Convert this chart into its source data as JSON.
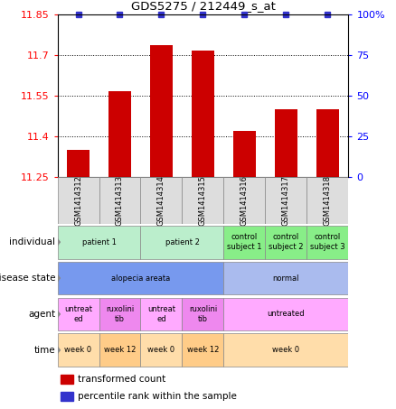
{
  "title": "GDS5275 / 212449_s_at",
  "samples": [
    "GSM1414312",
    "GSM1414313",
    "GSM1414314",
    "GSM1414315",
    "GSM1414316",
    "GSM1414317",
    "GSM1414318"
  ],
  "bar_values": [
    11.35,
    11.565,
    11.735,
    11.715,
    11.42,
    11.5,
    11.5
  ],
  "percentile_values": [
    100,
    100,
    100,
    100,
    100,
    100,
    100
  ],
  "ylim": [
    11.25,
    11.85
  ],
  "yticks_left": [
    11.25,
    11.4,
    11.55,
    11.7,
    11.85
  ],
  "yticks_right": [
    0,
    25,
    50,
    75,
    100
  ],
  "bar_color": "#cc0000",
  "dot_color": "#3333cc",
  "bar_bottom": 11.25,
  "grid_lines": [
    11.4,
    11.55,
    11.7
  ],
  "annotations": {
    "individual": {
      "label": "individual",
      "groups": [
        {
          "text": "patient 1",
          "cols": [
            0,
            1
          ],
          "color": "#bbeecc"
        },
        {
          "text": "patient 2",
          "cols": [
            2,
            3
          ],
          "color": "#bbeecc"
        },
        {
          "text": "control\nsubject 1",
          "cols": [
            4,
            4
          ],
          "color": "#88ee88"
        },
        {
          "text": "control\nsubject 2",
          "cols": [
            5,
            5
          ],
          "color": "#88ee88"
        },
        {
          "text": "control\nsubject 3",
          "cols": [
            6,
            6
          ],
          "color": "#88ee88"
        }
      ]
    },
    "disease_state": {
      "label": "disease state",
      "groups": [
        {
          "text": "alopecia areata",
          "cols": [
            0,
            3
          ],
          "color": "#7799ee"
        },
        {
          "text": "normal",
          "cols": [
            4,
            6
          ],
          "color": "#aabbee"
        }
      ]
    },
    "agent": {
      "label": "agent",
      "groups": [
        {
          "text": "untreat\ned",
          "cols": [
            0,
            0
          ],
          "color": "#ffaaff"
        },
        {
          "text": "ruxolini\ntib",
          "cols": [
            1,
            1
          ],
          "color": "#ee88ee"
        },
        {
          "text": "untreat\ned",
          "cols": [
            2,
            2
          ],
          "color": "#ffaaff"
        },
        {
          "text": "ruxolini\ntib",
          "cols": [
            3,
            3
          ],
          "color": "#ee88ee"
        },
        {
          "text": "untreated",
          "cols": [
            4,
            6
          ],
          "color": "#ffaaff"
        }
      ]
    },
    "time": {
      "label": "time",
      "groups": [
        {
          "text": "week 0",
          "cols": [
            0,
            0
          ],
          "color": "#ffddaa"
        },
        {
          "text": "week 12",
          "cols": [
            1,
            1
          ],
          "color": "#ffcc88"
        },
        {
          "text": "week 0",
          "cols": [
            2,
            2
          ],
          "color": "#ffddaa"
        },
        {
          "text": "week 12",
          "cols": [
            3,
            3
          ],
          "color": "#ffcc88"
        },
        {
          "text": "week 0",
          "cols": [
            4,
            6
          ],
          "color": "#ffddaa"
        }
      ]
    }
  },
  "annot_order": [
    "individual",
    "disease_state",
    "agent",
    "time"
  ],
  "annot_labels": [
    "individual",
    "disease state",
    "agent",
    "time"
  ],
  "legend": [
    {
      "color": "#cc0000",
      "label": "transformed count"
    },
    {
      "color": "#3333cc",
      "label": "percentile rank within the sample"
    }
  ]
}
